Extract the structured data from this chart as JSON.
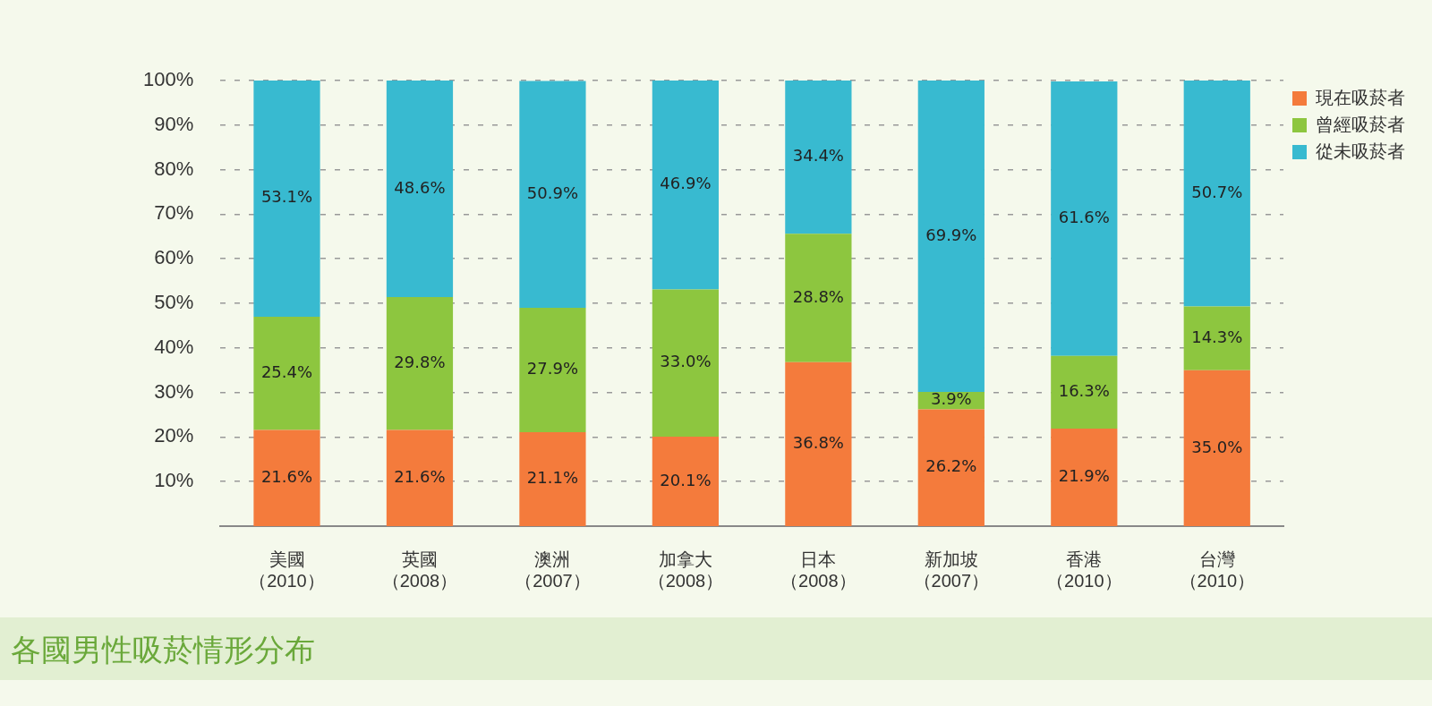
{
  "chart_data": {
    "type": "bar",
    "stacked": true,
    "title": "各國男性吸菸情形分布",
    "categories": [
      "美國（2010）",
      "英國（2008）",
      "澳洲（2007）",
      "加拿大（2008）",
      "日本（2008）",
      "新加坡（2007）",
      "香港（2010）",
      "台灣（2010）"
    ],
    "series": [
      {
        "name": "現在吸菸者",
        "color": "#f47b3c",
        "values": [
          21.6,
          21.6,
          21.1,
          20.1,
          36.8,
          26.2,
          21.9,
          35.0
        ],
        "value_labels": [
          "21.6%",
          "21.6%",
          "21.1%",
          "20.1%",
          "36.8%",
          "26.2%",
          "21.9%",
          "35.0%"
        ]
      },
      {
        "name": "曾經吸菸者",
        "color": "#8dc63f",
        "values": [
          25.4,
          29.8,
          27.9,
          33.0,
          28.8,
          3.9,
          16.3,
          14.3
        ],
        "value_labels": [
          "25.4%",
          "29.8%",
          "27.9%",
          "33.0%",
          "28.8%",
          "3.9%",
          "16.3%",
          "14.3%"
        ]
      },
      {
        "name": "從未吸菸者",
        "color": "#38bad0",
        "values": [
          53.1,
          48.6,
          50.9,
          46.9,
          34.4,
          69.9,
          61.6,
          50.7
        ],
        "value_labels": [
          "53.1%",
          "48.6%",
          "50.9%",
          "46.9%",
          "34.4%",
          "69.9%",
          "61.6%",
          "50.7%"
        ]
      }
    ],
    "ylim": [
      0,
      100
    ],
    "yticks": [
      {
        "value": 10,
        "label": "10%"
      },
      {
        "value": 20,
        "label": "20%"
      },
      {
        "value": 30,
        "label": "30%"
      },
      {
        "value": 40,
        "label": "40%"
      },
      {
        "value": 50,
        "label": "50%"
      },
      {
        "value": 60,
        "label": "60%"
      },
      {
        "value": 70,
        "label": "70%"
      },
      {
        "value": 80,
        "label": "80%"
      },
      {
        "value": 90,
        "label": "90%"
      },
      {
        "value": 100,
        "label": "100%"
      }
    ],
    "grid": "y",
    "legend": "right"
  }
}
